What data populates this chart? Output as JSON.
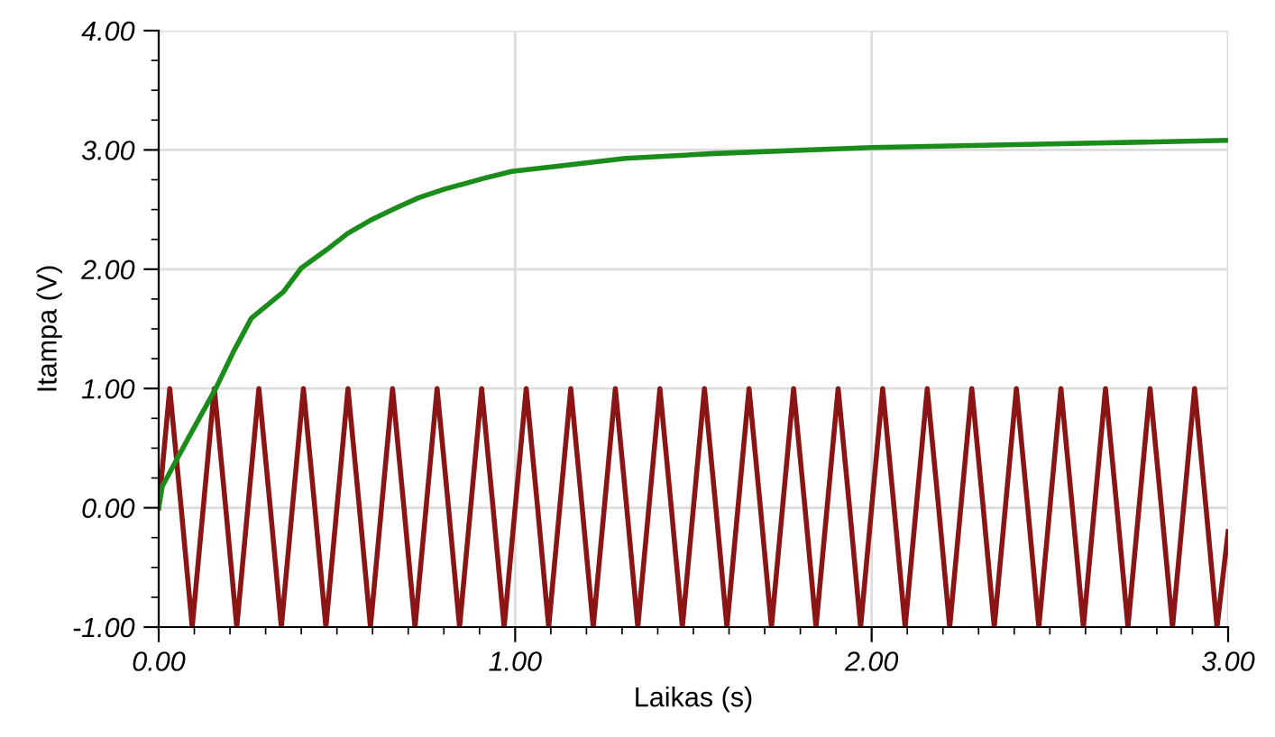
{
  "chart_data": {
    "type": "line",
    "xlabel": "Laikas (s)",
    "ylabel": "Itampa (V)",
    "xlim": [
      0,
      3
    ],
    "ylim": [
      -1,
      4
    ],
    "xticks": [
      {
        "value": 0,
        "label": "0.00"
      },
      {
        "value": 1,
        "label": "1.00"
      },
      {
        "value": 2,
        "label": "2.00"
      },
      {
        "value": 3,
        "label": "3.00"
      }
    ],
    "yticks": [
      {
        "value": -1,
        "label": "-1.00"
      },
      {
        "value": 0,
        "label": "0.00"
      },
      {
        "value": 1,
        "label": "1.00"
      },
      {
        "value": 2,
        "label": "2.00"
      },
      {
        "value": 3,
        "label": "3.00"
      },
      {
        "value": 4,
        "label": "4.00"
      }
    ],
    "grid": true,
    "marker": "none",
    "line_style": "solid",
    "series": [
      {
        "color": "#8b1414",
        "x": [
          0,
          0.031,
          0.063,
          0.094,
          0.125,
          0.156,
          0.188,
          0.219,
          0.25,
          0.281,
          0.313,
          0.344,
          0.375,
          0.406,
          0.438,
          0.469,
          0.5,
          0.531,
          0.563,
          0.594,
          0.625,
          0.656,
          0.688,
          0.719,
          0.75,
          0.781,
          0.813,
          0.844,
          0.875,
          0.906,
          0.938,
          0.969,
          1.0,
          1.031,
          1.063,
          1.094,
          1.125,
          1.156,
          1.188,
          1.219,
          1.25,
          1.281,
          1.313,
          1.344,
          1.375,
          1.406,
          1.438,
          1.469,
          1.5,
          1.531,
          1.563,
          1.594,
          1.625,
          1.656,
          1.688,
          1.719,
          1.75,
          1.781,
          1.813,
          1.844,
          1.875,
          1.906,
          1.938,
          1.969,
          2.0,
          2.031,
          2.063,
          2.094,
          2.125,
          2.156,
          2.188,
          2.219,
          2.25,
          2.281,
          2.313,
          2.344,
          2.375,
          2.406,
          2.438,
          2.469,
          2.5,
          2.531,
          2.563,
          2.594,
          2.625,
          2.656,
          2.688,
          2.719,
          2.75,
          2.781,
          2.813,
          2.844,
          2.875,
          2.906,
          2.938,
          2.969,
          3.0
        ],
        "values": [
          0,
          1,
          0,
          -1,
          0,
          1,
          0,
          -1,
          0,
          1,
          0,
          -1,
          0,
          1,
          0,
          -1,
          0,
          1,
          0,
          -1,
          0,
          1,
          0,
          -1,
          0,
          1,
          0,
          -1,
          0,
          1,
          0,
          -1,
          0,
          1,
          0,
          -1,
          0,
          1,
          0,
          -1,
          0,
          1,
          0,
          -1,
          0,
          1,
          0,
          -1,
          0,
          1,
          0,
          -1,
          0,
          1,
          0,
          -1,
          0,
          1,
          0,
          -1,
          0,
          1,
          0,
          -1,
          0,
          1,
          0,
          -1,
          0,
          1,
          0,
          -1,
          0,
          1,
          0,
          -1,
          0,
          1,
          0,
          -1,
          0,
          1,
          0,
          -1,
          0,
          1,
          0,
          -1,
          0,
          1,
          0,
          -1,
          0,
          1,
          0,
          -1,
          -0.2
        ]
      },
      {
        "color": "#1a8c1a",
        "x": [
          0,
          0.01,
          0.086,
          0.16,
          0.21,
          0.26,
          0.35,
          0.4,
          0.47,
          0.53,
          0.6,
          0.67,
          0.73,
          0.8,
          0.91,
          0.99,
          1.14,
          1.31,
          1.56,
          2.0,
          2.5,
          3.0
        ],
        "values": [
          0,
          0.18,
          0.6,
          1.0,
          1.31,
          1.59,
          1.81,
          2.01,
          2.16,
          2.3,
          2.42,
          2.52,
          2.6,
          2.67,
          2.76,
          2.82,
          2.87,
          2.93,
          2.97,
          3.02,
          3.05,
          3.08
        ]
      }
    ]
  }
}
